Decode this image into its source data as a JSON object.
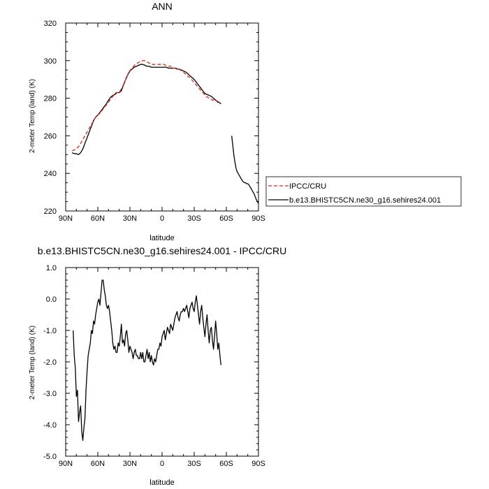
{
  "chart_data": [
    {
      "type": "line",
      "title": "ANN",
      "xlabel": "latitude",
      "ylabel": "2-meter Temp (land) (K)",
      "xlim": [
        90,
        -90
      ],
      "ylim": [
        220,
        320
      ],
      "x_ticks": [
        90,
        60,
        30,
        0,
        -30,
        -60,
        -90
      ],
      "x_tick_labels": [
        "90N",
        "60N",
        "30N",
        "0",
        "30S",
        "60S",
        "90S"
      ],
      "y_ticks": [
        220,
        240,
        260,
        280,
        300,
        320
      ],
      "y_tick_labels": [
        "220",
        "240",
        "260",
        "280",
        "300",
        "320"
      ],
      "legend": {
        "placement": "right"
      },
      "series": [
        {
          "name": "IPCC/CRU",
          "color": "#e8231c",
          "dash": "dashed",
          "x": [
            84,
            80,
            77,
            74,
            70,
            66,
            62,
            58,
            54,
            50,
            46,
            43,
            40,
            37,
            34,
            31,
            28,
            25,
            22,
            19,
            16,
            13,
            10,
            7,
            4,
            1,
            -2,
            -5,
            -8,
            -11,
            -14,
            -17,
            -20,
            -23,
            -26,
            -29,
            -32,
            -35,
            -38,
            -41,
            -44,
            -47,
            -50,
            -53,
            -55
          ],
          "y": [
            252,
            253,
            255,
            258,
            262,
            266,
            270,
            272,
            275,
            278,
            281,
            283,
            283,
            286,
            290,
            294,
            296,
            298,
            299,
            300,
            300,
            299,
            298,
            298,
            298,
            298,
            298,
            297,
            297,
            296,
            296,
            295,
            294,
            292,
            291,
            289,
            287,
            285,
            283,
            281,
            280,
            279,
            279,
            278,
            278
          ]
        },
        {
          "name": "b.e13.BHISTC5CN.ne30_g16.sehires24.001",
          "color": "#000000",
          "dash": "solid",
          "x": [
            84,
            82,
            80,
            78,
            76,
            74,
            72,
            70,
            68,
            66,
            64,
            62,
            60,
            58,
            56,
            54,
            52,
            50,
            48,
            46,
            44,
            42,
            40,
            38,
            36,
            34,
            32,
            30,
            28,
            26,
            24,
            22,
            20,
            18,
            16,
            14,
            12,
            10,
            8,
            6,
            4,
            2,
            0,
            -2,
            -4,
            -6,
            -8,
            -10,
            -12,
            -14,
            -16,
            -18,
            -20,
            -22,
            -24,
            -26,
            -28,
            -30,
            -32,
            -34,
            -36,
            -38,
            -40,
            -42,
            -44,
            -46,
            -48,
            -50,
            -52,
            -54,
            -55,
            null,
            -65,
            -66,
            -67,
            -68,
            -69,
            -70,
            -71,
            -72,
            -73,
            -74,
            -75,
            -76,
            -77,
            -78,
            -79,
            -80,
            -81,
            -82,
            -83,
            -84,
            -85,
            -86,
            -87,
            -88,
            -89,
            -90
          ],
          "y": [
            251,
            250.5,
            250.5,
            250,
            251,
            253,
            256,
            259,
            262,
            265,
            268,
            270,
            271,
            272.5,
            274,
            275.5,
            277,
            279,
            280.5,
            281.5,
            282,
            283,
            283,
            284,
            287,
            290,
            292.5,
            294.5,
            295.5,
            296.5,
            297,
            297.5,
            298,
            298,
            297.5,
            297,
            297,
            296.5,
            296.5,
            296.5,
            296.5,
            296.5,
            296.5,
            296.5,
            296.5,
            296,
            296,
            296,
            296,
            295.5,
            295.5,
            295,
            294.5,
            294,
            293,
            292,
            291,
            290,
            288.5,
            287,
            285.5,
            284,
            282.5,
            282,
            281.5,
            281,
            280,
            279,
            278,
            277.5,
            277,
            null,
            260,
            255,
            250,
            246,
            243,
            241,
            240,
            239,
            238,
            237,
            236,
            235.5,
            235,
            235,
            234.5,
            234.5,
            234,
            233,
            232,
            231,
            230,
            229,
            227.5,
            226,
            225,
            224
          ]
        }
      ]
    },
    {
      "type": "line",
      "title": "b.e13.BHISTC5CN.ne30_g16.sehires24.001 - IPCC/CRU",
      "xlabel": "latitude",
      "ylabel": "2-meter Temp (land) (K)",
      "xlim": [
        90,
        -90
      ],
      "ylim": [
        -5,
        1
      ],
      "x_ticks": [
        90,
        60,
        30,
        0,
        -30,
        -60,
        -90
      ],
      "x_tick_labels": [
        "90N",
        "60N",
        "30N",
        "0",
        "30S",
        "60S",
        "90S"
      ],
      "y_ticks": [
        1,
        0,
        -1,
        -2,
        -3,
        -4,
        -5
      ],
      "y_tick_labels": [
        "1.0",
        "0.0",
        "-1.0",
        "-2.0",
        "-3.0",
        "-4.0",
        "-5.0"
      ],
      "series": [
        {
          "color": "#000000",
          "dash": "solid",
          "x": [
            83,
            82,
            81,
            80,
            79,
            78,
            77,
            76,
            75,
            74,
            73,
            72,
            71,
            70,
            69,
            68,
            67,
            66,
            65,
            64,
            63,
            62,
            61,
            60,
            59,
            58,
            57,
            56,
            55,
            54,
            53,
            52,
            51,
            50,
            49,
            48,
            47,
            46,
            45,
            44,
            43,
            42,
            41,
            40,
            39,
            38,
            37,
            36,
            35,
            34,
            33,
            32,
            31,
            30,
            29,
            28,
            27,
            26,
            25,
            24,
            23,
            22,
            21,
            20,
            19,
            18,
            17,
            16,
            15,
            14,
            13,
            12,
            11,
            10,
            9,
            8,
            7,
            6,
            5,
            4,
            3,
            2,
            1,
            0,
            -1,
            -2,
            -3,
            -4,
            -5,
            -6,
            -7,
            -8,
            -9,
            -10,
            -11,
            -12,
            -13,
            -14,
            -15,
            -16,
            -17,
            -18,
            -19,
            -20,
            -21,
            -22,
            -23,
            -24,
            -25,
            -26,
            -27,
            -28,
            -29,
            -30,
            -31,
            -32,
            -33,
            -34,
            -35,
            -36,
            -37,
            -38,
            -39,
            -40,
            -41,
            -42,
            -43,
            -44,
            -45,
            -46,
            -47,
            -48,
            -49,
            -50,
            -51,
            -52,
            -53,
            -54,
            -55
          ],
          "y": [
            -1.0,
            -1.8,
            -2.2,
            -3.1,
            -2.9,
            -3.9,
            -3.6,
            -3.4,
            -4.2,
            -4.5,
            -4.1,
            -3.8,
            -2.9,
            -2.3,
            -1.8,
            -1.6,
            -1.4,
            -1.0,
            -1.1,
            -0.7,
            -0.8,
            -0.5,
            -0.3,
            -0.1,
            0.0,
            -0.2,
            0.2,
            0.6,
            0.6,
            0.3,
            0.1,
            -0.2,
            -0.3,
            -0.2,
            -0.4,
            -0.7,
            -1.0,
            -1.4,
            -1.6,
            -1.5,
            -1.7,
            -1.7,
            -1.4,
            -1.5,
            -1.2,
            -0.8,
            -1.4,
            -1.3,
            -1.5,
            -1.1,
            -1.0,
            -1.3,
            -1.7,
            -1.5,
            -1.6,
            -1.7,
            -1.9,
            -1.7,
            -1.6,
            -1.8,
            -1.8,
            -1.9,
            -1.9,
            -1.7,
            -1.9,
            -1.7,
            -2.0,
            -2.0,
            -1.8,
            -1.6,
            -1.9,
            -1.7,
            -2.0,
            -1.8,
            -2.0,
            -2.1,
            -1.9,
            -2.0,
            -1.8,
            -1.6,
            -1.6,
            -1.4,
            -1.5,
            -1.2,
            -1.1,
            -1.0,
            -1.3,
            -1.1,
            -0.9,
            -1.0,
            -1.1,
            -0.8,
            -0.9,
            -1.0,
            -0.8,
            -0.6,
            -0.5,
            -0.4,
            -0.6,
            -0.7,
            -0.5,
            -0.4,
            -0.4,
            -0.3,
            -0.4,
            -0.3,
            -0.2,
            -0.4,
            -0.6,
            -0.3,
            -0.2,
            -0.1,
            -0.3,
            -0.4,
            -0.1,
            0.1,
            -0.2,
            -0.5,
            -0.8,
            -0.4,
            -0.2,
            -0.6,
            -0.9,
            -1.2,
            -0.8,
            -0.5,
            -1.0,
            -1.4,
            -1.0,
            -0.9,
            -1.3,
            -1.6,
            -1.2,
            -0.7,
            -1.1,
            -1.6,
            -1.4,
            -1.8,
            -2.1
          ]
        }
      ]
    }
  ]
}
